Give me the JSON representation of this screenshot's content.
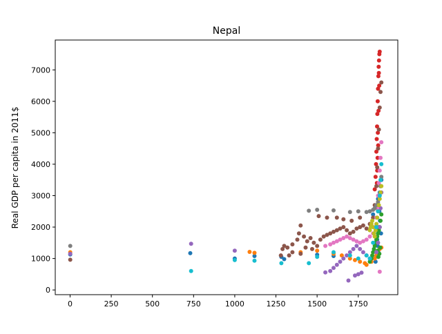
{
  "chart_data": {
    "type": "scatter",
    "title": "Nepal",
    "xlabel": "",
    "ylabel": "Real GDP per capita in 2011$",
    "xlim": [
      -90,
      1990
    ],
    "ylim": [
      -150,
      7950
    ],
    "xticks": [
      0,
      250,
      500,
      750,
      1000,
      1250,
      1500,
      1750
    ],
    "yticks": [
      0,
      1000,
      2000,
      3000,
      4000,
      5000,
      6000,
      7000
    ],
    "grid": false,
    "legend": "none",
    "series": [
      {
        "name": "series-blue",
        "color": "#1f77b4",
        "points": [
          [
            1,
            1130
          ],
          [
            730,
            1170
          ],
          [
            1000,
            1000
          ],
          [
            1120,
            1080
          ],
          [
            1283,
            1050
          ],
          [
            1300,
            980
          ],
          [
            1500,
            1120
          ],
          [
            1600,
            1080
          ],
          [
            1840,
            2400
          ],
          [
            1860,
            2600
          ],
          [
            1870,
            2900
          ],
          [
            1880,
            3100
          ],
          [
            1885,
            3300
          ],
          [
            1890,
            3500
          ],
          [
            1878,
            2500
          ],
          [
            1882,
            2200
          ],
          [
            1875,
            2000
          ],
          [
            1888,
            1800
          ],
          [
            1865,
            1600
          ],
          [
            1868,
            1400
          ],
          [
            1872,
            1200
          ],
          [
            1850,
            1000
          ],
          [
            1855,
            900
          ]
        ]
      },
      {
        "name": "series-orange",
        "color": "#ff7f0e",
        "points": [
          [
            1,
            1200
          ],
          [
            1090,
            1210
          ],
          [
            1120,
            1180
          ],
          [
            1400,
            1200
          ],
          [
            1500,
            1250
          ],
          [
            1600,
            1150
          ],
          [
            1650,
            1100
          ],
          [
            1700,
            1000
          ],
          [
            1730,
            950
          ],
          [
            1760,
            900
          ],
          [
            1790,
            850
          ],
          [
            1800,
            800
          ],
          [
            1830,
            900
          ],
          [
            1850,
            1000
          ],
          [
            1860,
            1100
          ],
          [
            1870,
            1200
          ],
          [
            1880,
            1300
          ],
          [
            1890,
            1350
          ]
        ]
      },
      {
        "name": "series-green",
        "color": "#2ca02c",
        "points": [
          [
            1820,
            900
          ],
          [
            1830,
            1000
          ],
          [
            1835,
            1100
          ],
          [
            1840,
            1200
          ],
          [
            1845,
            1300
          ],
          [
            1850,
            1400
          ],
          [
            1855,
            1500
          ],
          [
            1860,
            1600
          ],
          [
            1865,
            1700
          ],
          [
            1870,
            1800
          ],
          [
            1875,
            1900
          ],
          [
            1880,
            2000
          ],
          [
            1885,
            2200
          ],
          [
            1890,
            2400
          ],
          [
            1868,
            1250
          ],
          [
            1872,
            1050
          ],
          [
            1878,
            1150
          ],
          [
            1883,
            1350
          ]
        ]
      },
      {
        "name": "series-red",
        "color": "#d62728",
        "points": [
          [
            1850,
            3200
          ],
          [
            1855,
            3600
          ],
          [
            1858,
            4000
          ],
          [
            1860,
            4400
          ],
          [
            1862,
            4800
          ],
          [
            1864,
            5200
          ],
          [
            1866,
            5600
          ],
          [
            1868,
            6000
          ],
          [
            1870,
            6400
          ],
          [
            1872,
            6800
          ],
          [
            1874,
            7100
          ],
          [
            1876,
            7300
          ],
          [
            1878,
            7500
          ],
          [
            1880,
            7580
          ],
          [
            1877,
            6500
          ],
          [
            1873,
            5700
          ],
          [
            1869,
            5000
          ],
          [
            1871,
            4600
          ],
          [
            1867,
            4200
          ],
          [
            1865,
            3800
          ],
          [
            1863,
            3400
          ],
          [
            1875,
            6900
          ]
        ]
      },
      {
        "name": "series-purple",
        "color": "#9467bd",
        "points": [
          [
            1,
            1150
          ],
          [
            735,
            1470
          ],
          [
            1000,
            1250
          ],
          [
            1550,
            560
          ],
          [
            1580,
            600
          ],
          [
            1600,
            700
          ],
          [
            1620,
            800
          ],
          [
            1640,
            900
          ],
          [
            1660,
            1000
          ],
          [
            1680,
            1100
          ],
          [
            1700,
            1200
          ],
          [
            1720,
            1300
          ],
          [
            1740,
            1400
          ],
          [
            1760,
            1300
          ],
          [
            1780,
            1200
          ],
          [
            1800,
            1100
          ],
          [
            1820,
            1000
          ],
          [
            1690,
            300
          ],
          [
            1730,
            460
          ],
          [
            1750,
            500
          ],
          [
            1770,
            550
          ],
          [
            1860,
            1200
          ],
          [
            1870,
            1500
          ],
          [
            1880,
            2000
          ],
          [
            1885,
            2600
          ],
          [
            1890,
            3100
          ]
        ]
      },
      {
        "name": "series-brown",
        "color": "#8c564b",
        "points": [
          [
            1,
            960
          ],
          [
            1280,
            1100
          ],
          [
            1290,
            1300
          ],
          [
            1300,
            1400
          ],
          [
            1320,
            1350
          ],
          [
            1350,
            1450
          ],
          [
            1380,
            1600
          ],
          [
            1390,
            1800
          ],
          [
            1400,
            2050
          ],
          [
            1420,
            1700
          ],
          [
            1440,
            1550
          ],
          [
            1460,
            1650
          ],
          [
            1480,
            1500
          ],
          [
            1500,
            1400
          ],
          [
            1520,
            1600
          ],
          [
            1540,
            1700
          ],
          [
            1560,
            1750
          ],
          [
            1580,
            1800
          ],
          [
            1600,
            1850
          ],
          [
            1620,
            1900
          ],
          [
            1640,
            1950
          ],
          [
            1660,
            2000
          ],
          [
            1680,
            1900
          ],
          [
            1700,
            1800
          ],
          [
            1720,
            1850
          ],
          [
            1740,
            1950
          ],
          [
            1760,
            2000
          ],
          [
            1780,
            2050
          ],
          [
            1800,
            1950
          ],
          [
            1820,
            2100
          ],
          [
            1840,
            2300
          ],
          [
            1850,
            2700
          ],
          [
            1860,
            3300
          ],
          [
            1865,
            3900
          ],
          [
            1870,
            4500
          ],
          [
            1875,
            5100
          ],
          [
            1880,
            5800
          ],
          [
            1885,
            6300
          ],
          [
            1890,
            6600
          ],
          [
            1430,
            1350
          ],
          [
            1470,
            1300
          ],
          [
            1510,
            2350
          ],
          [
            1560,
            2300
          ],
          [
            1620,
            2300
          ],
          [
            1660,
            2250
          ],
          [
            1710,
            2200
          ],
          [
            1760,
            2300
          ],
          [
            1400,
            1150
          ],
          [
            1350,
            1200
          ],
          [
            1330,
            1100
          ]
        ]
      },
      {
        "name": "series-pink",
        "color": "#e377c2",
        "points": [
          [
            1550,
            1400
          ],
          [
            1580,
            1450
          ],
          [
            1600,
            1500
          ],
          [
            1620,
            1550
          ],
          [
            1640,
            1600
          ],
          [
            1660,
            1650
          ],
          [
            1680,
            1700
          ],
          [
            1700,
            1650
          ],
          [
            1720,
            1600
          ],
          [
            1740,
            1550
          ],
          [
            1760,
            1500
          ],
          [
            1780,
            1550
          ],
          [
            1800,
            1600
          ],
          [
            1820,
            1700
          ],
          [
            1840,
            1800
          ],
          [
            1850,
            2000
          ],
          [
            1860,
            2300
          ],
          [
            1865,
            2600
          ],
          [
            1870,
            3000
          ],
          [
            1875,
            3400
          ],
          [
            1880,
            3800
          ],
          [
            1885,
            4200
          ],
          [
            1890,
            4700
          ],
          [
            1880,
            580
          ]
        ]
      },
      {
        "name": "series-gray",
        "color": "#7f7f7f",
        "points": [
          [
            1,
            1400
          ],
          [
            1450,
            2520
          ],
          [
            1500,
            2550
          ],
          [
            1600,
            2530
          ],
          [
            1700,
            2480
          ],
          [
            1750,
            2500
          ],
          [
            1800,
            2480
          ],
          [
            1820,
            2500
          ],
          [
            1840,
            2550
          ],
          [
            1850,
            2600
          ],
          [
            1860,
            2700
          ],
          [
            1870,
            2800
          ],
          [
            1880,
            3000
          ],
          [
            1885,
            3300
          ],
          [
            1890,
            3600
          ]
        ]
      },
      {
        "name": "series-olive",
        "color": "#bcbd22",
        "points": [
          [
            1820,
            1900
          ],
          [
            1825,
            2000
          ],
          [
            1830,
            2100
          ],
          [
            1835,
            2200
          ],
          [
            1840,
            2000
          ],
          [
            1845,
            1800
          ],
          [
            1850,
            1700
          ],
          [
            1855,
            1900
          ],
          [
            1860,
            2100
          ],
          [
            1865,
            2300
          ],
          [
            1870,
            2500
          ],
          [
            1875,
            2700
          ],
          [
            1880,
            2900
          ],
          [
            1885,
            3100
          ],
          [
            1890,
            3300
          ]
        ]
      },
      {
        "name": "series-cyan",
        "color": "#17becf",
        "points": [
          [
            735,
            600
          ],
          [
            1000,
            950
          ],
          [
            1120,
            930
          ],
          [
            1283,
            850
          ],
          [
            1450,
            850
          ],
          [
            1500,
            1050
          ],
          [
            1600,
            1200
          ],
          [
            1700,
            1100
          ],
          [
            1750,
            1000
          ],
          [
            1800,
            1100
          ],
          [
            1820,
            1000
          ],
          [
            1840,
            1500
          ],
          [
            1860,
            2000
          ],
          [
            1870,
            2500
          ],
          [
            1880,
            3000
          ],
          [
            1885,
            3500
          ],
          [
            1890,
            4000
          ]
        ]
      }
    ]
  }
}
